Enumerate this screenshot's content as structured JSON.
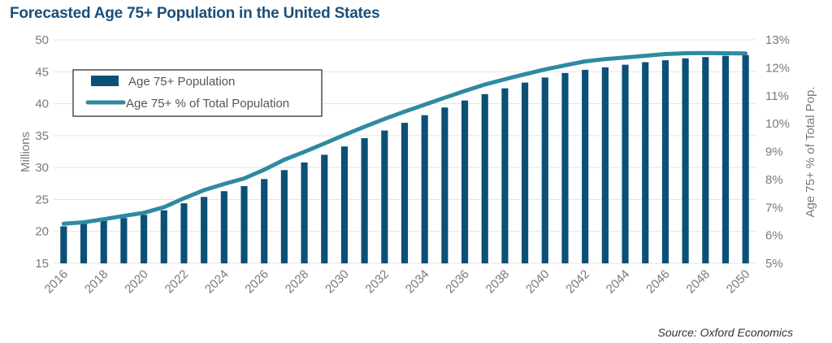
{
  "title": "Forecasted Age 75+ Population in the United States",
  "source": "Source: Oxford Economics",
  "colors": {
    "bar": "#0b5077",
    "line": "#2e8aa0",
    "title": "#1a4f7a",
    "grid": "#e3e3e3",
    "axis_text": "#7a7a7a"
  },
  "chart_data": {
    "type": "bar",
    "title": "Forecasted Age 75+ Population in the United States",
    "xlabel": "",
    "ylabel": "Millions",
    "y2label": "Age 75+ % of Total Pop.",
    "ylim": [
      15,
      50
    ],
    "y2lim": [
      5,
      13
    ],
    "yticks": [
      15,
      20,
      25,
      30,
      35,
      40,
      45,
      50
    ],
    "y2ticks": [
      "5%",
      "6%",
      "7%",
      "8%",
      "9%",
      "10%",
      "11%",
      "12%",
      "13%"
    ],
    "xticks": [
      "2016",
      "2018",
      "2020",
      "2022",
      "2024",
      "2026",
      "2028",
      "2030",
      "2032",
      "2034",
      "2036",
      "2038",
      "2040",
      "2042",
      "2044",
      "2046",
      "2048",
      "2050"
    ],
    "legend": [
      "Age 75+ Population",
      "Age 75+ % of Total Population"
    ],
    "grid": true,
    "categories": [
      "2016",
      "2017",
      "2018",
      "2019",
      "2020",
      "2021",
      "2022",
      "2023",
      "2024",
      "2025",
      "2026",
      "2027",
      "2028",
      "2029",
      "2030",
      "2031",
      "2032",
      "2033",
      "2034",
      "2035",
      "2036",
      "2037",
      "2038",
      "2039",
      "2040",
      "2041",
      "2042",
      "2043",
      "2044",
      "2045",
      "2046",
      "2047",
      "2048",
      "2049",
      "2050"
    ],
    "series": [
      {
        "name": "Age 75+ Population",
        "type": "bar",
        "axis": "left",
        "values": [
          20.8,
          21.2,
          21.7,
          22.1,
          22.6,
          23.3,
          24.4,
          25.4,
          26.3,
          27.1,
          28.2,
          29.6,
          30.8,
          32.0,
          33.3,
          34.6,
          35.8,
          37.0,
          38.2,
          39.4,
          40.5,
          41.5,
          42.4,
          43.3,
          44.1,
          44.8,
          45.3,
          45.7,
          46.1,
          46.5,
          46.8,
          47.1,
          47.3,
          47.5,
          47.6
        ]
      },
      {
        "name": "Age 75+ % of Total Population",
        "type": "line",
        "axis": "right",
        "values": [
          6.42,
          6.47,
          6.58,
          6.7,
          6.81,
          7.01,
          7.33,
          7.62,
          7.84,
          8.04,
          8.35,
          8.71,
          8.99,
          9.29,
          9.6,
          9.89,
          10.17,
          10.43,
          10.68,
          10.93,
          11.17,
          11.4,
          11.59,
          11.77,
          11.94,
          12.09,
          12.23,
          12.31,
          12.37,
          12.43,
          12.49,
          12.52,
          12.53,
          12.52,
          12.51
        ]
      }
    ]
  }
}
